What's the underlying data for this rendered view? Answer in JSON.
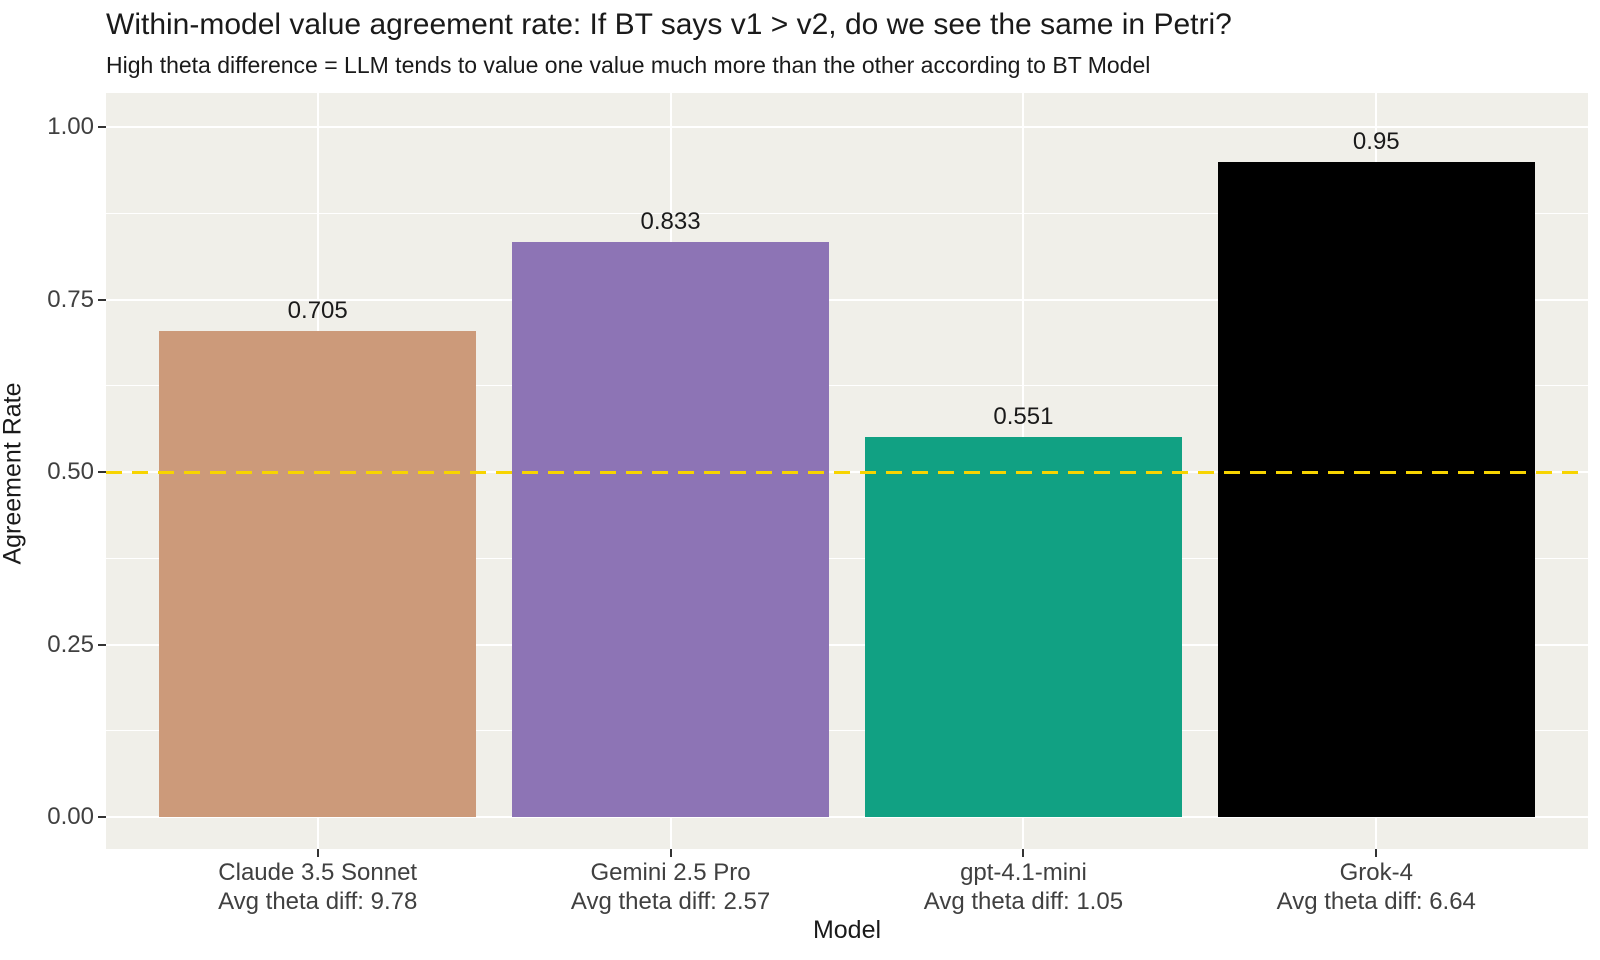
{
  "chart_data": {
    "type": "bar",
    "title": "Within-model value agreement rate: If BT says v1 > v2, do we see the same in Petri?",
    "subtitle": "High theta difference = LLM tends to value one value much more than the other according to BT Model",
    "xlabel": "Model",
    "ylabel": "Agreement Rate",
    "categories": [
      {
        "model": "Claude 3.5 Sonnet",
        "sublabel": "Avg theta diff: 9.78"
      },
      {
        "model": "Gemini 2.5 Pro",
        "sublabel": "Avg theta diff: 2.57"
      },
      {
        "model": "gpt-4.1-mini",
        "sublabel": "Avg theta diff: 1.05"
      },
      {
        "model": "Grok-4",
        "sublabel": "Avg theta diff: 6.64"
      }
    ],
    "values": [
      0.705,
      0.833,
      0.551,
      0.95
    ],
    "value_labels": [
      "0.705",
      "0.833",
      "0.551",
      "0.95"
    ],
    "bar_colors": [
      "#CC9A7A",
      "#8D74B5",
      "#11A183",
      "#000000"
    ],
    "ylim": [
      0,
      1
    ],
    "y_ticks": [
      {
        "value": 0.0,
        "label": "0.00"
      },
      {
        "value": 0.25,
        "label": "0.25"
      },
      {
        "value": 0.5,
        "label": "0.50"
      },
      {
        "value": 0.75,
        "label": "0.75"
      },
      {
        "value": 1.0,
        "label": "1.00"
      }
    ],
    "y_minor_ticks": [
      0.125,
      0.375,
      0.625,
      0.875
    ],
    "reference_line": {
      "y": 0.5,
      "style": "dashed",
      "color": "#F7D400"
    },
    "colors": {
      "panel_background": "#F0EFE9",
      "gridline": "#FFFFFF",
      "tick_mark": "#333333"
    },
    "legend": "none",
    "grid": "on"
  }
}
